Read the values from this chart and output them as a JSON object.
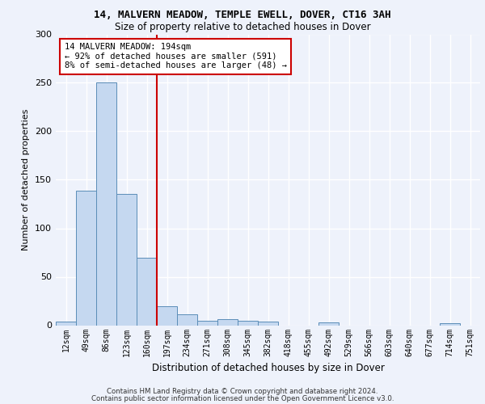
{
  "title1": "14, MALVERN MEADOW, TEMPLE EWELL, DOVER, CT16 3AH",
  "title2": "Size of property relative to detached houses in Dover",
  "xlabel": "Distribution of detached houses by size in Dover",
  "ylabel": "Number of detached properties",
  "footer1": "Contains HM Land Registry data © Crown copyright and database right 2024.",
  "footer2": "Contains public sector information licensed under the Open Government Licence v3.0.",
  "bin_labels": [
    "12sqm",
    "49sqm",
    "86sqm",
    "123sqm",
    "160sqm",
    "197sqm",
    "234sqm",
    "271sqm",
    "308sqm",
    "345sqm",
    "382sqm",
    "418sqm",
    "455sqm",
    "492sqm",
    "529sqm",
    "566sqm",
    "603sqm",
    "640sqm",
    "677sqm",
    "714sqm",
    "751sqm"
  ],
  "bar_values": [
    4,
    139,
    250,
    135,
    70,
    20,
    11,
    5,
    6,
    5,
    4,
    0,
    0,
    3,
    0,
    0,
    0,
    0,
    0,
    2,
    0
  ],
  "bar_color": "#c5d8f0",
  "bar_edge_color": "#5b8db8",
  "annotation_line1": "14 MALVERN MEADOW: 194sqm",
  "annotation_line2": "← 92% of detached houses are smaller (591)",
  "annotation_line3": "8% of semi-detached houses are larger (48) →",
  "annotation_box_color": "#ffffff",
  "annotation_box_edge_color": "#cc0000",
  "vline_color": "#cc0000",
  "vline_position": 5,
  "ylim": [
    0,
    300
  ],
  "yticks": [
    0,
    50,
    100,
    150,
    200,
    250,
    300
  ],
  "background_color": "#eef2fb",
  "grid_color": "#ffffff"
}
